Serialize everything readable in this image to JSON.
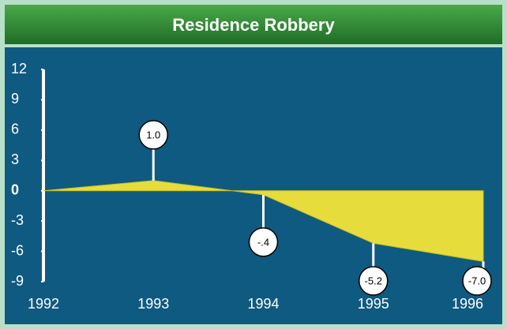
{
  "chart_data": {
    "type": "area",
    "title": "Residence Robbery",
    "categories": [
      "1992",
      "1993",
      "1994",
      "1995",
      "1996"
    ],
    "values": [
      0,
      1.0,
      -0.4,
      -5.2,
      -7.0
    ],
    "value_labels": [
      null,
      "1.0",
      "-.4",
      "-5.2",
      "-7.0"
    ],
    "color": "#e6dc3c",
    "ylim": [
      -9,
      12
    ],
    "yticks": [
      12,
      9,
      6,
      3,
      0,
      -3,
      -6,
      -9
    ]
  }
}
